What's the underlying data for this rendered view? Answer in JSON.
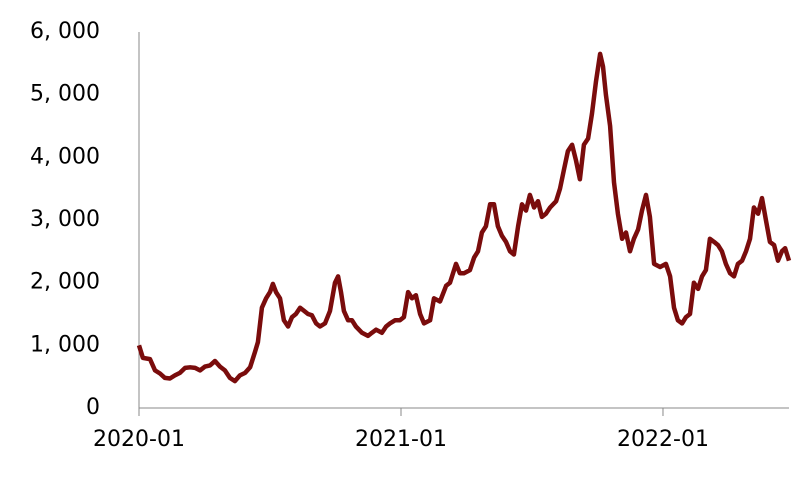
{
  "chart_data": {
    "type": "line",
    "color": "#7a0c0c",
    "x": [
      2020.0,
      2020.015,
      2020.042,
      2020.061,
      2020.08,
      2020.099,
      2020.118,
      2020.137,
      2020.156,
      2020.176,
      2020.195,
      2020.214,
      2020.233,
      2020.252,
      2020.271,
      2020.29,
      2020.309,
      2020.328,
      2020.347,
      2020.366,
      2020.385,
      2020.405,
      2020.424,
      2020.443,
      2020.454,
      2020.469,
      2020.485,
      2020.5,
      2020.511,
      2020.523,
      2020.538,
      2020.553,
      2020.569,
      2020.584,
      2020.599,
      2020.615,
      2020.63,
      2020.645,
      2020.66,
      2020.676,
      2020.691,
      2020.71,
      2020.729,
      2020.748,
      2020.76,
      2020.771,
      2020.782,
      2020.798,
      2020.813,
      2020.828,
      2020.851,
      2020.874,
      2020.889,
      2020.905,
      2020.927,
      2020.943,
      2020.958,
      2020.977,
      2020.996,
      2021.011,
      2021.027,
      2021.042,
      2021.057,
      2021.073,
      2021.088,
      2021.111,
      2021.126,
      2021.149,
      2021.172,
      2021.187,
      2021.21,
      2021.225,
      2021.24,
      2021.263,
      2021.279,
      2021.294,
      2021.309,
      2021.324,
      2021.34,
      2021.355,
      2021.37,
      2021.385,
      2021.401,
      2021.416,
      2021.431,
      2021.447,
      2021.462,
      2021.477,
      2021.492,
      2021.508,
      2021.523,
      2021.538,
      2021.553,
      2021.569,
      2021.592,
      2021.607,
      2021.622,
      2021.637,
      2021.653,
      2021.668,
      2021.683,
      2021.698,
      2021.714,
      2021.729,
      2021.744,
      2021.76,
      2021.771,
      2021.782,
      2021.798,
      2021.813,
      2021.828,
      2021.844,
      2021.859,
      2021.874,
      2021.889,
      2021.905,
      2021.92,
      2021.935,
      2021.95,
      2021.966,
      2021.989,
      2022.011,
      2022.027,
      2022.042,
      2022.057,
      2022.073,
      2022.088,
      2022.103,
      2022.118,
      2022.134,
      2022.149,
      2022.164,
      2022.179,
      2022.195,
      2022.21,
      2022.225,
      2022.24,
      2022.256,
      2022.271,
      2022.286,
      2022.302,
      2022.317,
      2022.332,
      2022.347,
      2022.363,
      2022.378,
      2022.393,
      2022.408,
      2022.424,
      2022.439,
      2022.454,
      2022.466,
      2022.481
    ],
    "values": [
      1000,
      800,
      780,
      600,
      550,
      480,
      470,
      520,
      560,
      640,
      650,
      640,
      600,
      660,
      680,
      750,
      660,
      600,
      480,
      430,
      520,
      560,
      650,
      900,
      1050,
      1600,
      1750,
      1850,
      1980,
      1850,
      1750,
      1400,
      1300,
      1450,
      1500,
      1600,
      1550,
      1500,
      1480,
      1350,
      1300,
      1350,
      1550,
      2000,
      2100,
      1850,
      1550,
      1400,
      1400,
      1300,
      1200,
      1150,
      1200,
      1250,
      1200,
      1300,
      1350,
      1400,
      1400,
      1450,
      1850,
      1750,
      1800,
      1500,
      1350,
      1400,
      1750,
      1700,
      1950,
      2000,
      2300,
      2150,
      2150,
      2200,
      2400,
      2500,
      2800,
      2900,
      3250,
      3250,
      2900,
      2750,
      2650,
      2500,
      2450,
      2900,
      3250,
      3150,
      3400,
      3200,
      3300,
      3050,
      3100,
      3200,
      3300,
      3500,
      3800,
      4100,
      4200,
      3950,
      3650,
      4200,
      4300,
      4700,
      5200,
      5650,
      5450,
      5000,
      4500,
      3600,
      3100,
      2700,
      2800,
      2500,
      2700,
      2850,
      3150,
      3400,
      3050,
      2300,
      2250,
      2300,
      2100,
      1600,
      1400,
      1350,
      1450,
      1500,
      2000,
      1900,
      2100,
      2200,
      2700,
      2650,
      2600,
      2500,
      2300,
      2150,
      2100,
      2300,
      2350,
      2500,
      2700,
      3200,
      3100,
      3350,
      3000,
      2650,
      2600,
      2350,
      2500,
      2550,
      2350
    ],
    "xlim": [
      2020,
      2022.481
    ],
    "xticks": [
      {
        "value": 2020,
        "label": "2020-01"
      },
      {
        "value": 2021,
        "label": "2021-01"
      },
      {
        "value": 2022,
        "label": "2022-01"
      }
    ],
    "ylim": [
      0,
      6000
    ],
    "yticks": [
      0,
      {
        "value": 1000,
        "label": "1, 000"
      },
      {
        "value": 2000,
        "label": "2, 000"
      },
      {
        "value": 3000,
        "label": "3, 000"
      },
      {
        "value": 4000,
        "label": "4, 000"
      },
      {
        "value": 5000,
        "label": "5, 000"
      },
      {
        "value": 6000,
        "label": "6, 000"
      }
    ]
  }
}
